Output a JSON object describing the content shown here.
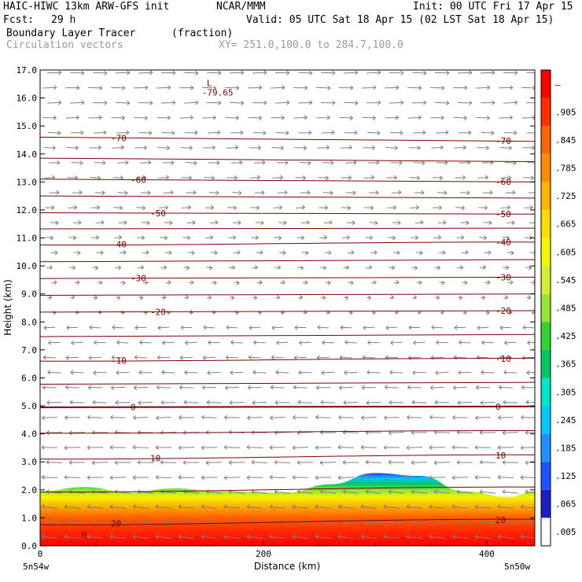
{
  "header": {
    "model": "HAIC-HIWC 13km ARW-GFS init",
    "org": "NCAR/MMM",
    "init": "Init: 00 UTC Fri 17 Apr 15",
    "fcst_label": "Fcst:",
    "fcst_value": "29 h",
    "valid": "Valid: 05 UTC Sat 18 Apr 15 (02 LST Sat 18 Apr 15)",
    "field1_name": "Boundary Layer Tracer",
    "field1_units": "(fraction)",
    "field2_name": "Circulation vectors",
    "xy_range": "XY= 251.0,100.0 to 284.7,100.0"
  },
  "chart_data": {
    "type": "cross-section",
    "title": "Boundary Layer Tracer",
    "xlabel": "Distance (km)",
    "ylabel": "Height (km)",
    "xlim": [
      0,
      443
    ],
    "ylim": [
      0,
      17
    ],
    "x_ticks": [
      0,
      200,
      400
    ],
    "y_ticks": [
      "0.0",
      "1.0",
      "2.0",
      "3.0",
      "4.0",
      "5.0",
      "6.0",
      "7.0",
      "8.0",
      "9.0",
      "10.0",
      "11.0",
      "12.0",
      "13.0",
      "14.0",
      "15.0",
      "16.0",
      "17.0"
    ],
    "x_endpoint_labels": [
      "5n54w",
      "5n50w"
    ],
    "colorbar_labels": [
      ".005",
      ".065",
      ".125",
      ".185",
      ".245",
      ".305",
      ".365",
      ".425",
      ".485",
      ".545",
      ".605",
      ".665",
      ".725",
      ".785",
      ".845",
      ".905",
      "–"
    ],
    "colorbar_colors": [
      "#ffffff",
      "#1e1ec8",
      "#1e50ff",
      "#1e90ff",
      "#00c8ff",
      "#00e6c8",
      "#00c864",
      "#32d232",
      "#96e632",
      "#d2f032",
      "#f5f500",
      "#ffdc00",
      "#ffb400",
      "#ff8c00",
      "#ff6400",
      "#ff2d00",
      "#ff0000"
    ],
    "bl_tracer_top_km": [
      [
        0,
        1.95
      ],
      [
        40,
        2.1
      ],
      [
        80,
        1.9
      ],
      [
        120,
        2.05
      ],
      [
        160,
        1.95
      ],
      [
        220,
        1.9
      ],
      [
        260,
        2.2
      ],
      [
        300,
        2.6
      ],
      [
        340,
        2.5
      ],
      [
        380,
        1.95
      ],
      [
        420,
        1.75
      ],
      [
        443,
        1.95
      ]
    ],
    "temperature_contours": [
      {
        "label": "-70",
        "y0": 14.6,
        "y1": 14.45
      },
      {
        "label": "-60",
        "y0": 13.1,
        "y1": 13.0
      },
      {
        "label": "-50",
        "y0": 11.9,
        "y1": 11.85
      },
      {
        "label": "-40",
        "y0": 10.75,
        "y1": 10.85
      },
      {
        "label": "-30",
        "y0": 9.55,
        "y1": 9.6
      },
      {
        "label": "-20",
        "y0": 8.35,
        "y1": 8.4
      },
      {
        "label": "-10",
        "y0": 6.6,
        "y1": 6.7
      },
      {
        "label": "0",
        "y0": 4.95,
        "y1": 4.98
      },
      {
        "label": "10",
        "y0": 3.1,
        "y1": 3.25
      },
      {
        "label": "20",
        "y0": 0.75,
        "y1": 0.95
      }
    ],
    "low_label": "L",
    "low_value": "-79.65",
    "low_pos": [
      152,
      16.2
    ],
    "high_label": "H",
    "high_pos": [
      37,
      0.25
    ]
  }
}
